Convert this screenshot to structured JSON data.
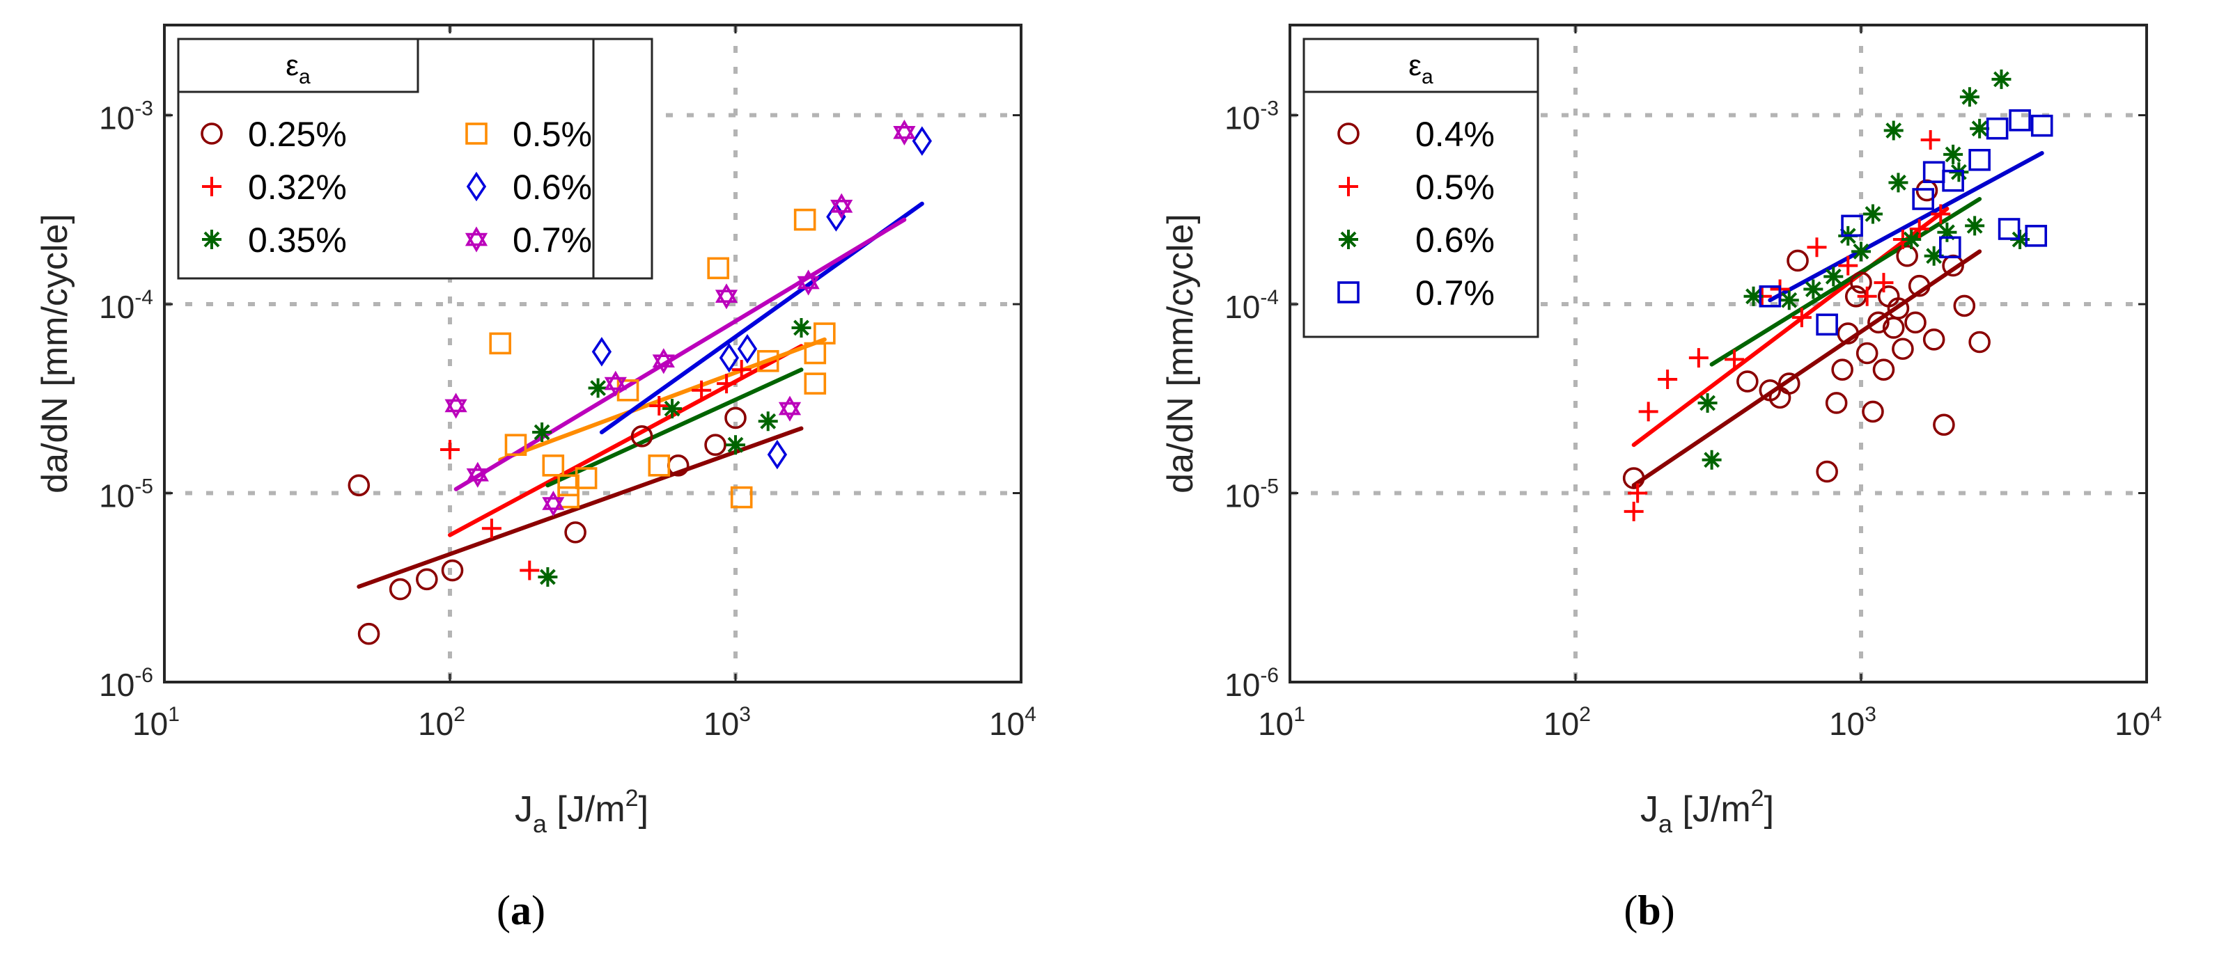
{
  "chart_data": [
    {
      "type": "scatter",
      "panel": "a",
      "caption_letter": "a",
      "xscale": "log",
      "yscale": "log",
      "xlim": [
        10,
        10000
      ],
      "ylim": [
        1e-06,
        0.003
      ],
      "xticks": [
        {
          "base": "10",
          "exp": "1"
        },
        {
          "base": "10",
          "exp": "2"
        },
        {
          "base": "10",
          "exp": "3"
        },
        {
          "base": "10",
          "exp": "4"
        }
      ],
      "yticks": [
        {
          "base": "10",
          "exp": "-6"
        },
        {
          "base": "10",
          "exp": "-5"
        },
        {
          "base": "10",
          "exp": "-4"
        },
        {
          "base": "10",
          "exp": "-3"
        }
      ],
      "xlabel": {
        "main": "J",
        "sub": "a",
        "unit_pre": " [J/m",
        "unit_sup": "2",
        "unit_post": "]"
      },
      "ylabel": "da/dN [mm/cycle]",
      "legend_title": {
        "main": "ε",
        "sub": "a"
      },
      "legend_position": "top-left",
      "series": [
        {
          "name": "0.25%",
          "marker": "circle",
          "color": "#8b0000",
          "points": [
            [
              48,
              1.1e-05
            ],
            [
              52,
              1.8e-06
            ],
            [
              67,
              3.1e-06
            ],
            [
              83,
              3.5e-06
            ],
            [
              102,
              3.9e-06
            ],
            [
              275,
              6.2e-06
            ],
            [
              470,
              2e-05
            ],
            [
              630,
              1.4e-05
            ],
            [
              850,
              1.8e-05
            ],
            [
              1000,
              2.5e-05
            ]
          ],
          "fit": [
            [
              48,
              3.2e-06
            ],
            [
              1700,
              2.2e-05
            ]
          ]
        },
        {
          "name": "0.32%",
          "marker": "plus",
          "color": "#ff0000",
          "points": [
            [
              100,
              1.7e-05
            ],
            [
              140,
              6.5e-06
            ],
            [
              190,
              3.9e-06
            ],
            [
              540,
              2.9e-05
            ],
            [
              760,
              3.5e-05
            ],
            [
              930,
              3.8e-05
            ],
            [
              1050,
              4.5e-05
            ]
          ],
          "fit": [
            [
              100,
              6e-06
            ],
            [
              1700,
              6e-05
            ]
          ]
        },
        {
          "name": "0.35%",
          "marker": "asterisk",
          "color": "#006400",
          "points": [
            [
              210,
              2.1e-05
            ],
            [
              220,
              3.6e-06
            ],
            [
              330,
              3.6e-05
            ],
            [
              600,
              2.8e-05
            ],
            [
              1000,
              1.8e-05
            ],
            [
              1300,
              2.4e-05
            ],
            [
              1700,
              7.5e-05
            ]
          ],
          "fit": [
            [
              220,
              1.1e-05
            ],
            [
              1700,
              4.5e-05
            ]
          ]
        },
        {
          "name": "0.5%",
          "marker": "square",
          "color": "#ff8c00",
          "points": [
            [
              150,
              6.2e-05
            ],
            [
              170,
              1.8e-05
            ],
            [
              230,
              1.4e-05
            ],
            [
              260,
              1.1e-05
            ],
            [
              300,
              1.2e-05
            ],
            [
              260,
              9.5e-06
            ],
            [
              420,
              3.5e-05
            ],
            [
              540,
              1.4e-05
            ],
            [
              870,
              0.000155
            ],
            [
              1050,
              9.5e-06
            ],
            [
              1300,
              5e-05
            ],
            [
              1750,
              0.00028
            ],
            [
              1900,
              3.8e-05
            ],
            [
              1900,
              5.5e-05
            ],
            [
              2050,
              7e-05
            ]
          ],
          "fit": [
            [
              150,
              1.5e-05
            ],
            [
              2050,
              6.5e-05
            ]
          ]
        },
        {
          "name": "0.6%",
          "marker": "diamond",
          "color": "#0000dd",
          "points": [
            [
              340,
              5.6e-05
            ],
            [
              950,
              5.2e-05
            ],
            [
              1100,
              5.8e-05
            ],
            [
              1400,
              1.6e-05
            ],
            [
              2250,
              0.00029
            ],
            [
              4500,
              0.00073
            ]
          ],
          "fit": [
            [
              340,
              2.1e-05
            ],
            [
              4500,
              0.00034
            ]
          ]
        },
        {
          "name": "0.7%",
          "marker": "star",
          "color": "#bb00bb",
          "points": [
            [
              105,
              2.9e-05
            ],
            [
              125,
              1.25e-05
            ],
            [
              230,
              8.8e-06
            ],
            [
              380,
              3.8e-05
            ],
            [
              560,
              5e-05
            ],
            [
              930,
              0.00011
            ],
            [
              1550,
              2.8e-05
            ],
            [
              1800,
              0.00013
            ],
            [
              2350,
              0.00033
            ],
            [
              3900,
              0.00081
            ]
          ],
          "fit": [
            [
              105,
              1.05e-05
            ],
            [
              3900,
              0.00028
            ]
          ]
        }
      ]
    },
    {
      "type": "scatter",
      "panel": "b",
      "caption_letter": "b",
      "xscale": "log",
      "yscale": "log",
      "xlim": [
        10,
        10000
      ],
      "ylim": [
        1e-06,
        0.003
      ],
      "xticks": [
        {
          "base": "10",
          "exp": "1"
        },
        {
          "base": "10",
          "exp": "2"
        },
        {
          "base": "10",
          "exp": "3"
        },
        {
          "base": "10",
          "exp": "4"
        }
      ],
      "yticks": [
        {
          "base": "10",
          "exp": "-6"
        },
        {
          "base": "10",
          "exp": "-5"
        },
        {
          "base": "10",
          "exp": "-4"
        },
        {
          "base": "10",
          "exp": "-3"
        }
      ],
      "xlabel": {
        "main": "J",
        "sub": "a",
        "unit_pre": " [J/m",
        "unit_sup": "2",
        "unit_post": "]"
      },
      "ylabel": "da/dN [mm/cycle]",
      "legend_title": {
        "main": "ε",
        "sub": "a"
      },
      "legend_position": "top-left",
      "series": [
        {
          "name": "0.4%",
          "marker": "circle",
          "color": "#8b0000",
          "points": [
            [
              160,
              1.2e-05
            ],
            [
              400,
              3.9e-05
            ],
            [
              480,
              3.5e-05
            ],
            [
              520,
              3.2e-05
            ],
            [
              560,
              3.8e-05
            ],
            [
              600,
              0.00017
            ],
            [
              760,
              1.3e-05
            ],
            [
              820,
              3e-05
            ],
            [
              860,
              4.5e-05
            ],
            [
              900,
              7e-05
            ],
            [
              960,
              0.00011
            ],
            [
              1000,
              0.00013
            ],
            [
              1050,
              5.5e-05
            ],
            [
              1100,
              2.7e-05
            ],
            [
              1150,
              8e-05
            ],
            [
              1200,
              4.5e-05
            ],
            [
              1250,
              0.00011
            ],
            [
              1300,
              7.5e-05
            ],
            [
              1350,
              9.5e-05
            ],
            [
              1400,
              5.8e-05
            ],
            [
              1450,
              0.00018
            ],
            [
              1550,
              8e-05
            ],
            [
              1600,
              0.000125
            ],
            [
              1700,
              0.0004
            ],
            [
              1800,
              6.5e-05
            ],
            [
              1950,
              2.3e-05
            ],
            [
              2100,
              0.00016
            ],
            [
              2300,
              9.8e-05
            ],
            [
              2600,
              6.3e-05
            ]
          ],
          "fit": [
            [
              160,
              1.1e-05
            ],
            [
              2600,
              0.00019
            ]
          ]
        },
        {
          "name": "0.5%",
          "marker": "plus",
          "color": "#ff0000",
          "points": [
            [
              160,
              8e-06
            ],
            [
              165,
              1e-05
            ],
            [
              180,
              2.7e-05
            ],
            [
              210,
              4e-05
            ],
            [
              270,
              5.2e-05
            ],
            [
              360,
              5.1e-05
            ],
            [
              450,
              0.00011
            ],
            [
              520,
              0.00012
            ],
            [
              620,
              8.5e-05
            ],
            [
              700,
              0.0002
            ],
            [
              900,
              0.00016
            ],
            [
              1050,
              0.00011
            ],
            [
              1200,
              0.00013
            ],
            [
              1400,
              0.00022
            ],
            [
              1600,
              0.00025
            ],
            [
              1750,
              0.00074
            ],
            [
              1900,
              0.0003
            ]
          ],
          "fit": [
            [
              160,
              1.8e-05
            ],
            [
              2000,
              0.00032
            ]
          ]
        },
        {
          "name": "0.6%",
          "marker": "asterisk",
          "color": "#006400",
          "points": [
            [
              290,
              3e-05
            ],
            [
              300,
              1.5e-05
            ],
            [
              420,
              0.00011
            ],
            [
              560,
              0.000105
            ],
            [
              680,
              0.00012
            ],
            [
              800,
              0.00014
            ],
            [
              900,
              0.00023
            ],
            [
              1000,
              0.00019
            ],
            [
              1100,
              0.0003
            ],
            [
              1300,
              0.00083
            ],
            [
              1350,
              0.00044
            ],
            [
              1500,
              0.00022
            ],
            [
              1800,
              0.00018
            ],
            [
              2000,
              0.00024
            ],
            [
              2100,
              0.00062
            ],
            [
              2200,
              0.0005
            ],
            [
              2400,
              0.00125
            ],
            [
              2500,
              0.00026
            ],
            [
              2600,
              0.00085
            ],
            [
              3100,
              0.00155
            ],
            [
              3600,
              0.00022
            ]
          ],
          "fit": [
            [
              300,
              4.8e-05
            ],
            [
              2600,
              0.00036
            ]
          ]
        },
        {
          "name": "0.7%",
          "marker": "square",
          "color": "#0000cc",
          "points": [
            [
              480,
              0.00011
            ],
            [
              760,
              7.8e-05
            ],
            [
              930,
              0.00026
            ],
            [
              1650,
              0.00036
            ],
            [
              1800,
              0.0005
            ],
            [
              2050,
              0.0002
            ],
            [
              2100,
              0.00045
            ],
            [
              2600,
              0.00058
            ],
            [
              3000,
              0.00085
            ],
            [
              3300,
              0.00025
            ],
            [
              3600,
              0.00094
            ],
            [
              4100,
              0.00023
            ],
            [
              4300,
              0.00088
            ]
          ],
          "fit": [
            [
              480,
              0.000105
            ],
            [
              4300,
              0.00063
            ]
          ]
        }
      ]
    }
  ]
}
